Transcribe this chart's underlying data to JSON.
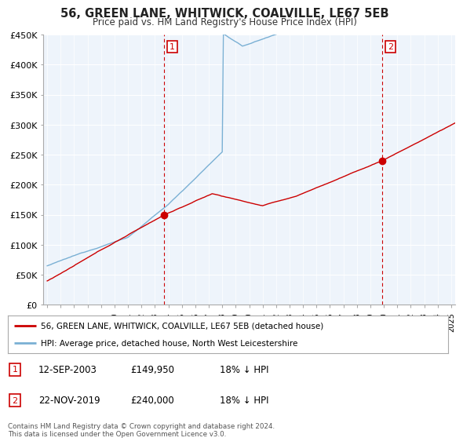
{
  "title": "56, GREEN LANE, WHITWICK, COALVILLE, LE67 5EB",
  "subtitle": "Price paid vs. HM Land Registry's House Price Index (HPI)",
  "ylabel_ticks": [
    "£0",
    "£50K",
    "£100K",
    "£150K",
    "£200K",
    "£250K",
    "£300K",
    "£350K",
    "£400K",
    "£450K"
  ],
  "ylim": [
    0,
    450000
  ],
  "xlim_start": 1994.7,
  "xlim_end": 2025.3,
  "legend_line1": "56, GREEN LANE, WHITWICK, COALVILLE, LE67 5EB (detached house)",
  "legend_line2": "HPI: Average price, detached house, North West Leicestershire",
  "marker1_date": 2003.7,
  "marker1_value": 149950,
  "marker2_date": 2019.9,
  "marker2_value": 240000,
  "footnote1": "Contains HM Land Registry data © Crown copyright and database right 2024.",
  "footnote2": "This data is licensed under the Open Government Licence v3.0.",
  "table_row1_label": "1",
  "table_row1_date": "12-SEP-2003",
  "table_row1_price": "£149,950",
  "table_row1_hpi": "18% ↓ HPI",
  "table_row2_label": "2",
  "table_row2_date": "22-NOV-2019",
  "table_row2_price": "£240,000",
  "table_row2_hpi": "18% ↓ HPI",
  "line_color_red": "#cc0000",
  "line_color_blue": "#7ab0d4",
  "fill_color_blue": "#ddeeff",
  "vline_color": "#cc0000",
  "marker_box_color": "#cc0000",
  "background_color": "#ffffff",
  "plot_bg_color": "#eef4fb",
  "grid_color": "#ffffff"
}
